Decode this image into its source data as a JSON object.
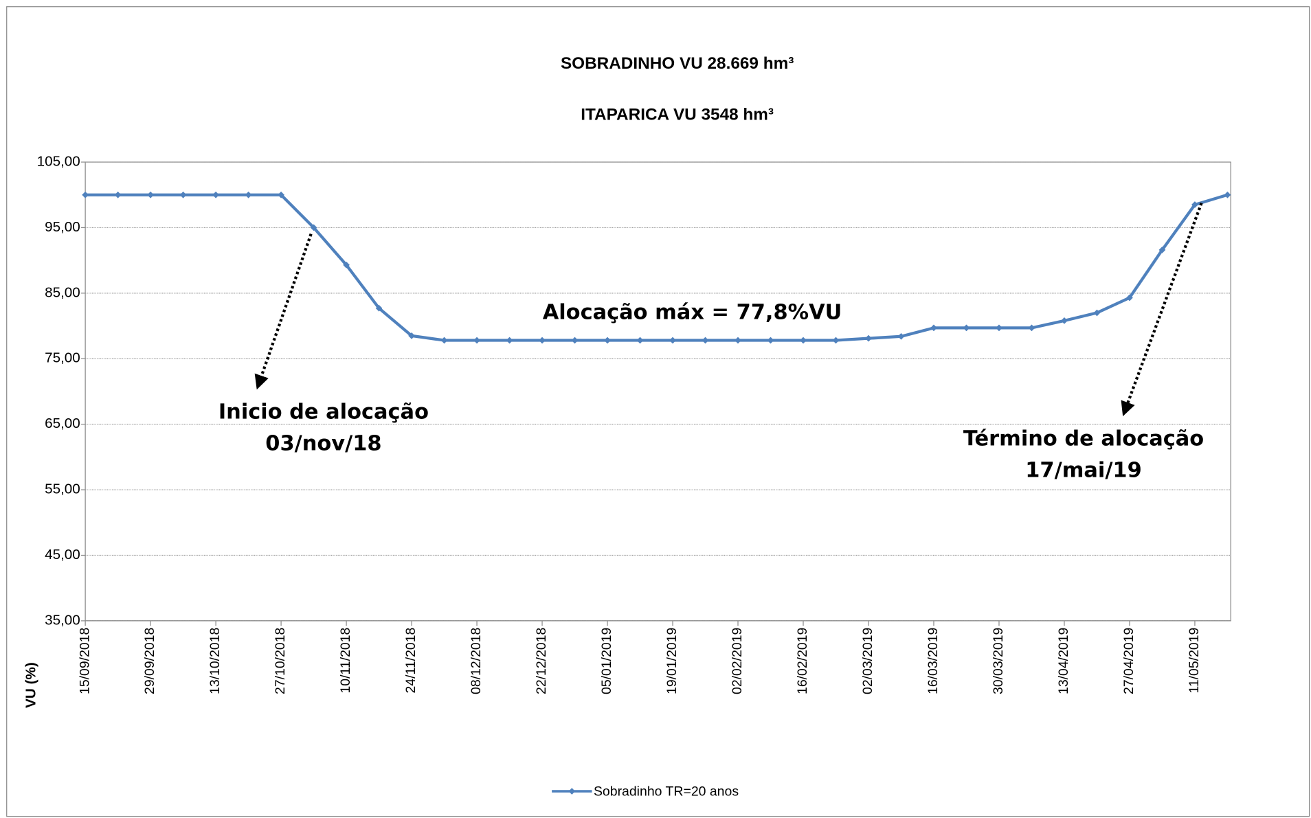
{
  "chart_data": {
    "type": "line",
    "title": "SOBRADINHO VU 28.669 hm³",
    "subtitle": "ITAPARICA VU 3548 hm³",
    "y_label": "VU (%)",
    "annotations": [
      "Alocação máx = 77,8%VU",
      "Inicio de alocação",
      "03/nov/18",
      "Término de alocação",
      "17/mai/19"
    ],
    "categories": [
      "15/09/2018",
      null,
      "29/09/2018",
      null,
      "13/10/2018",
      null,
      "27/10/2018",
      null,
      "10/11/2018",
      null,
      "24/11/2018",
      null,
      "08/12/2018",
      null,
      "22/12/2018",
      null,
      "05/01/2019",
      null,
      "19/01/2019",
      null,
      "02/02/2019",
      null,
      "16/02/2019",
      null,
      "02/03/2019",
      null,
      "16/03/2019",
      null,
      "30/03/2019",
      null,
      "13/04/2019",
      null,
      "27/04/2019",
      null,
      "11/05/2019",
      null
    ],
    "series": [
      {
        "name": "Sobradinho TR=20 anos",
        "color": "#4f81bd",
        "values": [
          100,
          100,
          100,
          100,
          100,
          100,
          100,
          95,
          89.3,
          82.7,
          78.5,
          77.8,
          77.8,
          77.8,
          77.8,
          77.8,
          77.8,
          77.8,
          77.8,
          77.8,
          77.8,
          77.8,
          77.8,
          77.8,
          78.1,
          78.4,
          79.7,
          79.7,
          79.7,
          79.7,
          80.8,
          82.0,
          84.3,
          91.6,
          98.5,
          100
        ]
      }
    ],
    "ylim": [
      35,
      105
    ],
    "yticks": [
      {
        "value": 35,
        "label": "35,00"
      },
      {
        "value": 45,
        "label": "45,00"
      },
      {
        "value": 55,
        "label": "55,00"
      },
      {
        "value": 65,
        "label": "65,00"
      },
      {
        "value": 75,
        "label": "75,00"
      },
      {
        "value": 85,
        "label": "85,00"
      },
      {
        "value": 95,
        "label": "95,00"
      },
      {
        "value": 105,
        "label": "105,00"
      }
    ],
    "grid": true,
    "legend": "bottom"
  }
}
